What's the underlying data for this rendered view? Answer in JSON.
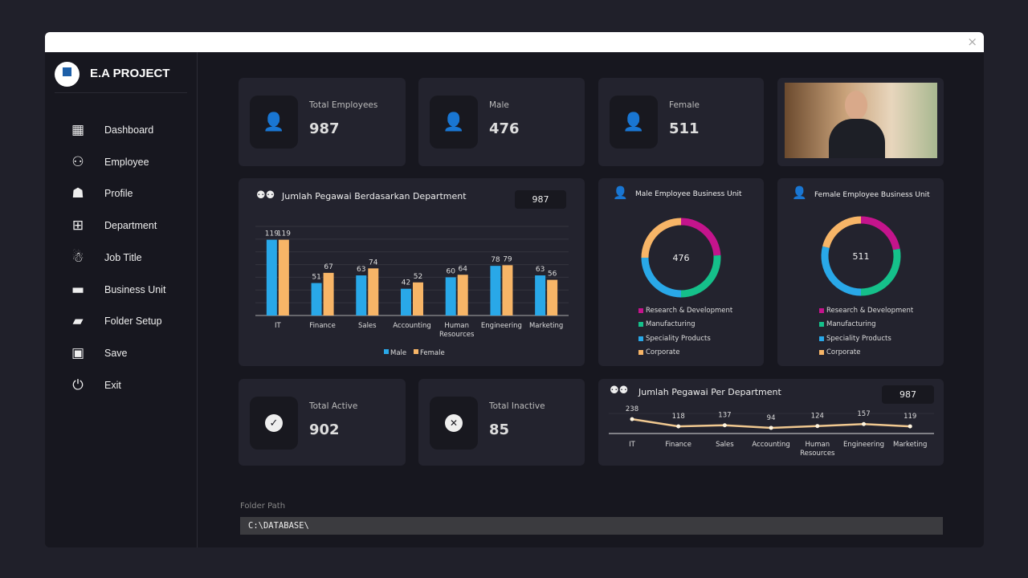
{
  "window": {
    "close_icon": "×"
  },
  "sidebar": {
    "brand": "E.A PROJECT",
    "items": [
      {
        "label": "Dashboard",
        "icon": "dashboard-icon",
        "glyph": "▦"
      },
      {
        "label": "Employee",
        "icon": "employee-icon",
        "glyph": "⚇"
      },
      {
        "label": "Profile",
        "icon": "profile-icon",
        "glyph": "☗"
      },
      {
        "label": "Department",
        "icon": "department-icon",
        "glyph": "⊞"
      },
      {
        "label": "Job Title",
        "icon": "job-title-icon",
        "glyph": "☃"
      },
      {
        "label": "Business Unit",
        "icon": "briefcase-icon",
        "glyph": "▬"
      },
      {
        "label": "Folder Setup",
        "icon": "folder-icon",
        "glyph": "▰"
      },
      {
        "label": "Save",
        "icon": "save-icon",
        "glyph": "▣"
      },
      {
        "label": "Exit",
        "icon": "power-icon",
        "glyph": "⏻"
      }
    ]
  },
  "kpis": {
    "total": {
      "label": "Total Employees",
      "value": "987",
      "glyph": "👤"
    },
    "male": {
      "label": "Male",
      "value": "476",
      "glyph": "👤"
    },
    "female": {
      "label": "Female",
      "value": "511",
      "glyph": "👤"
    },
    "active": {
      "label": "Total Active",
      "value": "902",
      "glyph": "✓"
    },
    "inactive": {
      "label": "Total Inactive",
      "value": "85",
      "glyph": "✕"
    }
  },
  "colors": {
    "male": "#29a8e8",
    "female": "#f7b567",
    "rd": "#c4148c",
    "mfg": "#15c08a",
    "spec": "#29a8e8",
    "corp": "#f7b567",
    "line": "#f0c890"
  },
  "chart_data": [
    {
      "type": "bar",
      "title": "Jumlah Pegawai Berdasarkan Department",
      "total": "987",
      "categories": [
        "IT",
        "Finance",
        "Sales",
        "Accounting",
        "Human Resources",
        "Engineering",
        "Marketing"
      ],
      "series": [
        {
          "name": "Male",
          "values": [
            119,
            51,
            63,
            42,
            60,
            78,
            63
          ]
        },
        {
          "name": "Female",
          "values": [
            119,
            67,
            74,
            52,
            64,
            79,
            56
          ]
        }
      ],
      "ylim": [
        0,
        140
      ],
      "grid": true,
      "legend": "bottom"
    },
    {
      "type": "pie",
      "title": "Male Employee  Business Unit",
      "center": "476",
      "categories": [
        "Research & Development",
        "Manufacturing",
        "Speciality Products",
        "Corporate"
      ],
      "values": [
        24,
        26,
        25,
        25
      ],
      "legend": "bottom"
    },
    {
      "type": "pie",
      "title": "Female Employee Business Unit",
      "center": "511",
      "categories": [
        "Research & Development",
        "Manufacturing",
        "Speciality Products",
        "Corporate"
      ],
      "values": [
        22,
        28,
        29,
        21
      ],
      "legend": "bottom"
    },
    {
      "type": "line",
      "title": "Jumlah Pegawai Per Department",
      "total": "987",
      "categories": [
        "IT",
        "Finance",
        "Sales",
        "Accounting",
        "Human Resources",
        "Engineering",
        "Marketing"
      ],
      "values": [
        238,
        118,
        137,
        94,
        124,
        157,
        119
      ]
    }
  ],
  "folder": {
    "label": "Folder Path",
    "value": "C:\\DATABASE\\"
  }
}
